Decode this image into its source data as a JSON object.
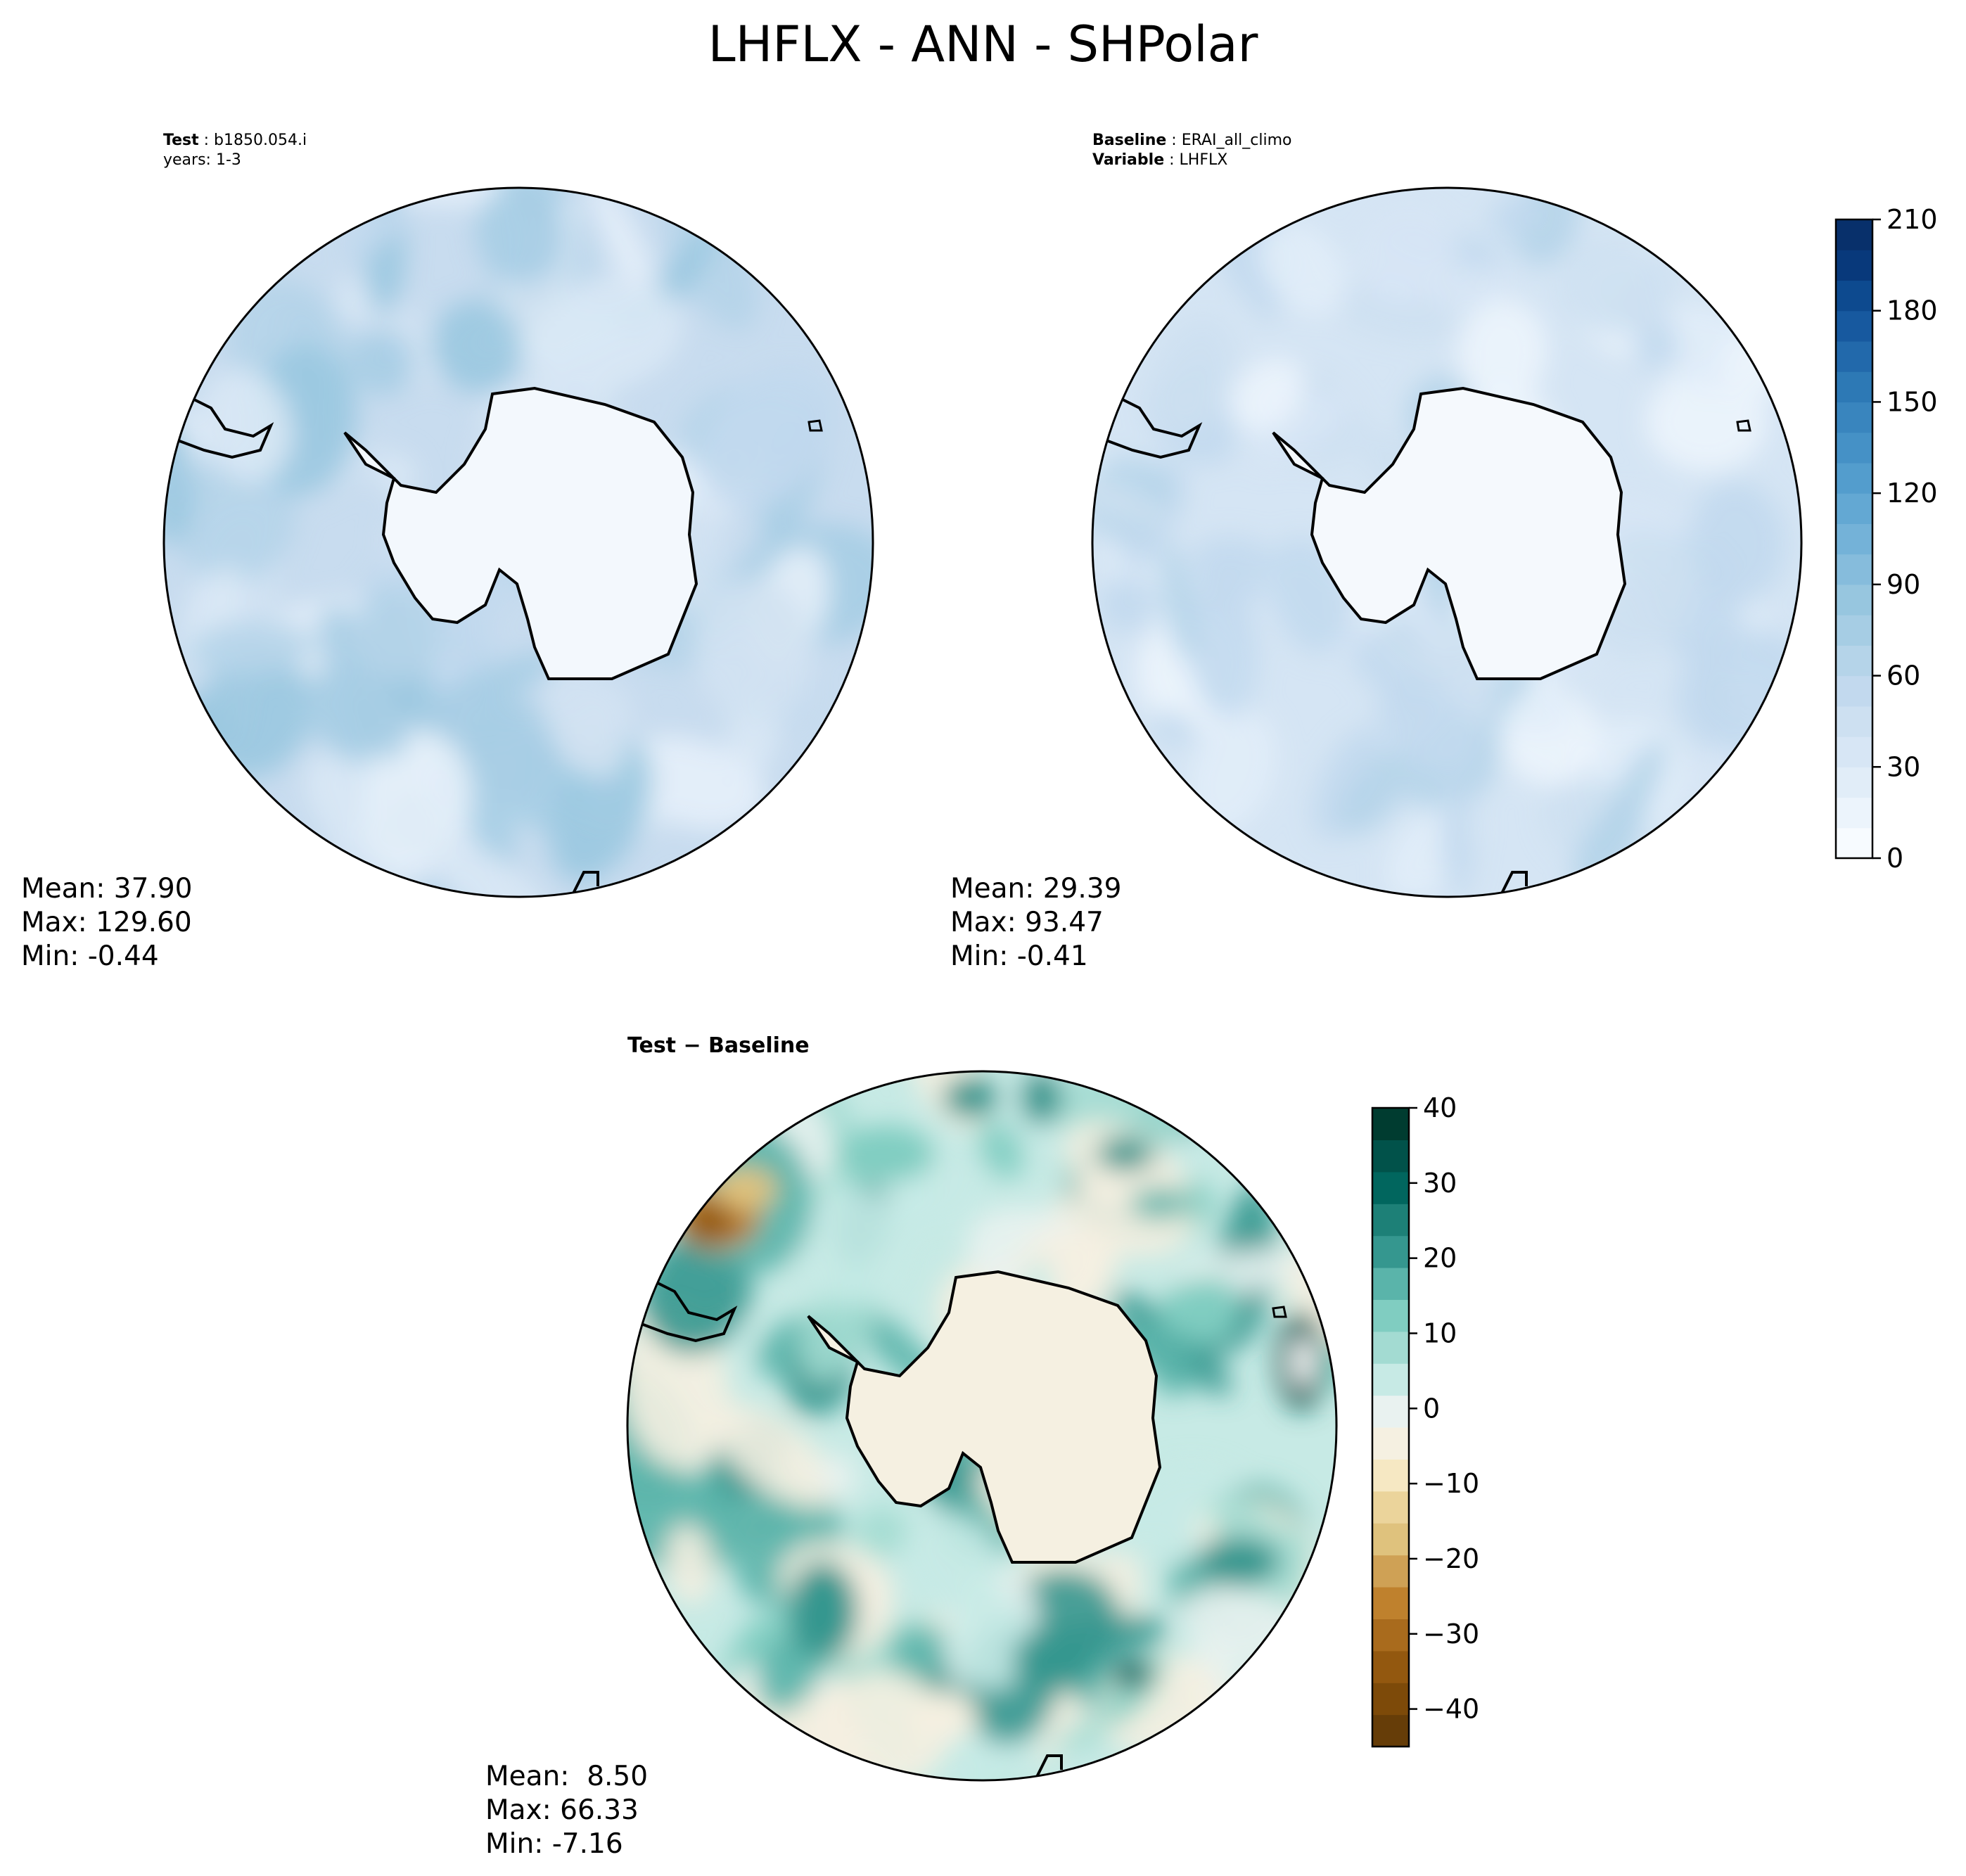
{
  "title": "LHFLX - ANN - SHPolar",
  "test_panel": {
    "label_key": "Test",
    "label_value": "b1850.054.i",
    "years_line": "years: 1-3",
    "stats": {
      "mean": "Mean: 37.90",
      "max": "Max: 129.60",
      "min": "Min: -0.44"
    }
  },
  "baseline_panel": {
    "label_key": "Baseline",
    "label_value": "ERAI_all_climo",
    "variable_key": "Variable",
    "variable_value": "LHFLX",
    "stats": {
      "mean": "Mean: 29.39",
      "max": "Max: 93.47",
      "min": "Min: -0.41"
    }
  },
  "diff_panel": {
    "title": "Test − Baseline",
    "stats": {
      "mean": "Mean:  8.50",
      "max": "Max: 66.33",
      "min": "Min: -7.16"
    }
  },
  "colorbars": {
    "main": {
      "range": [
        0,
        210
      ],
      "ticks": [
        "0",
        "30",
        "60",
        "90",
        "120",
        "150",
        "180",
        "210"
      ],
      "colors": [
        "#f7fbff",
        "#ecf4fc",
        "#e1edf8",
        "#d7e6f5",
        "#cde0f1",
        "#c2d9ee",
        "#b5d4e9",
        "#a6cde4",
        "#97c6df",
        "#86bcdc",
        "#74b2d8",
        "#63a8d3",
        "#539dcd",
        "#4591c6",
        "#3985be",
        "#2d79b5",
        "#2269ab",
        "#17599f",
        "#0d4a8f",
        "#08397b",
        "#08306b"
      ]
    },
    "diff": {
      "range": [
        -45,
        40
      ],
      "ticks": [
        "40",
        "30",
        "20",
        "10",
        "0",
        "−10",
        "−20",
        "−30",
        "−40"
      ],
      "colors": [
        "#663d08",
        "#7d4a09",
        "#93580f",
        "#a96b1d",
        "#bf812d",
        "#cfa155",
        "#dfc27d",
        "#ebd49b",
        "#f6e8c3",
        "#f5f0e1",
        "#e9f2f0",
        "#c7eae5",
        "#a3dbd2",
        "#80cdc1",
        "#5ab4aa",
        "#35978f",
        "#1d8077",
        "#01665e",
        "#01524a",
        "#003c30"
      ]
    }
  },
  "map_palette": {
    "test": [
      "#d1e2f2",
      "#c2d9ee",
      "#b5d4e9",
      "#a6cde4",
      "#d9e8f5",
      "#e6f0fa",
      "#9ac8e0"
    ],
    "baseline": [
      "#d7e6f5",
      "#cde0f1",
      "#e1edf8",
      "#c2d9ee",
      "#b5d4e9",
      "#ecf4fc"
    ],
    "diff": [
      "#c7eae5",
      "#a3dbd2",
      "#80cdc1",
      "#e9f2f0",
      "#5ab4aa",
      "#35978f",
      "#f5f0e1"
    ],
    "coast": "#000000",
    "ice_test": "#f3f8fd",
    "ice_baseline": "#f5f9fd",
    "ice_diff": "#f5f0e1"
  }
}
